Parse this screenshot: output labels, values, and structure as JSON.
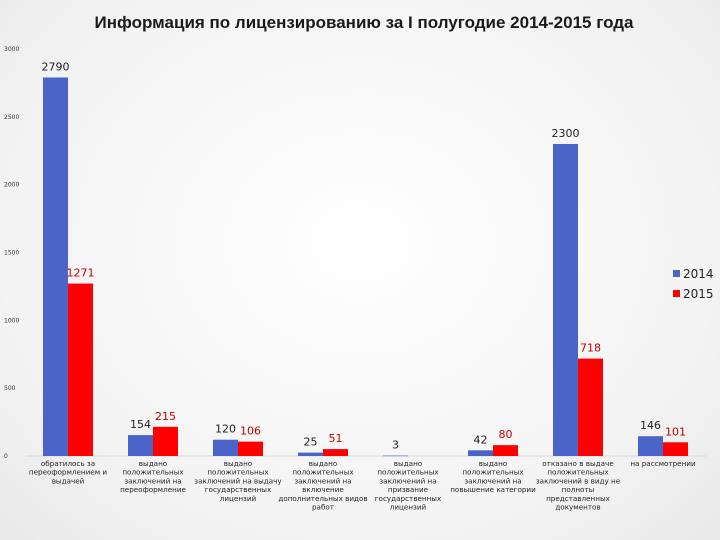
{
  "chart_data": {
    "type": "bar",
    "title": "Информация по лицензированию за I полугодие 2014-2015 года",
    "xlabel": "",
    "ylabel": "",
    "ylim": [
      0,
      3000
    ],
    "yticks": [
      0,
      500,
      1000,
      1500,
      2000,
      2500,
      3000
    ],
    "legend_position": "right",
    "categories": [
      [
        "обратилось за",
        "переоформлением и",
        "выдачей"
      ],
      [
        "выдано",
        "положительных",
        "заключений на",
        "переоформление"
      ],
      [
        "выдано",
        "положительных",
        "заключений на выдачу",
        "государственных",
        "лицензий"
      ],
      [
        "выдано",
        "положительных",
        "заключений на",
        "включение",
        "дополнительных видов",
        "работ"
      ],
      [
        "выдано",
        "положительных",
        "заключений на",
        "призвание",
        "государственных",
        "лицензий"
      ],
      [
        "выдано",
        "положительных",
        "заключений на",
        "повышение категории"
      ],
      [
        "отказано в выдаче",
        "положительных",
        "заключений в виду не",
        "полноты",
        "представленных",
        "документов"
      ],
      [
        "на рассмотрении"
      ]
    ],
    "series": [
      {
        "name": "2014",
        "color": "#4a64c8",
        "label_color": "#222222",
        "values": [
          2790,
          154,
          120,
          25,
          3,
          42,
          2300,
          146
        ]
      },
      {
        "name": "2015",
        "color": "#ff0000",
        "label_color": "#c00000",
        "values": [
          1271,
          215,
          106,
          51,
          null,
          80,
          718,
          101
        ]
      }
    ]
  }
}
